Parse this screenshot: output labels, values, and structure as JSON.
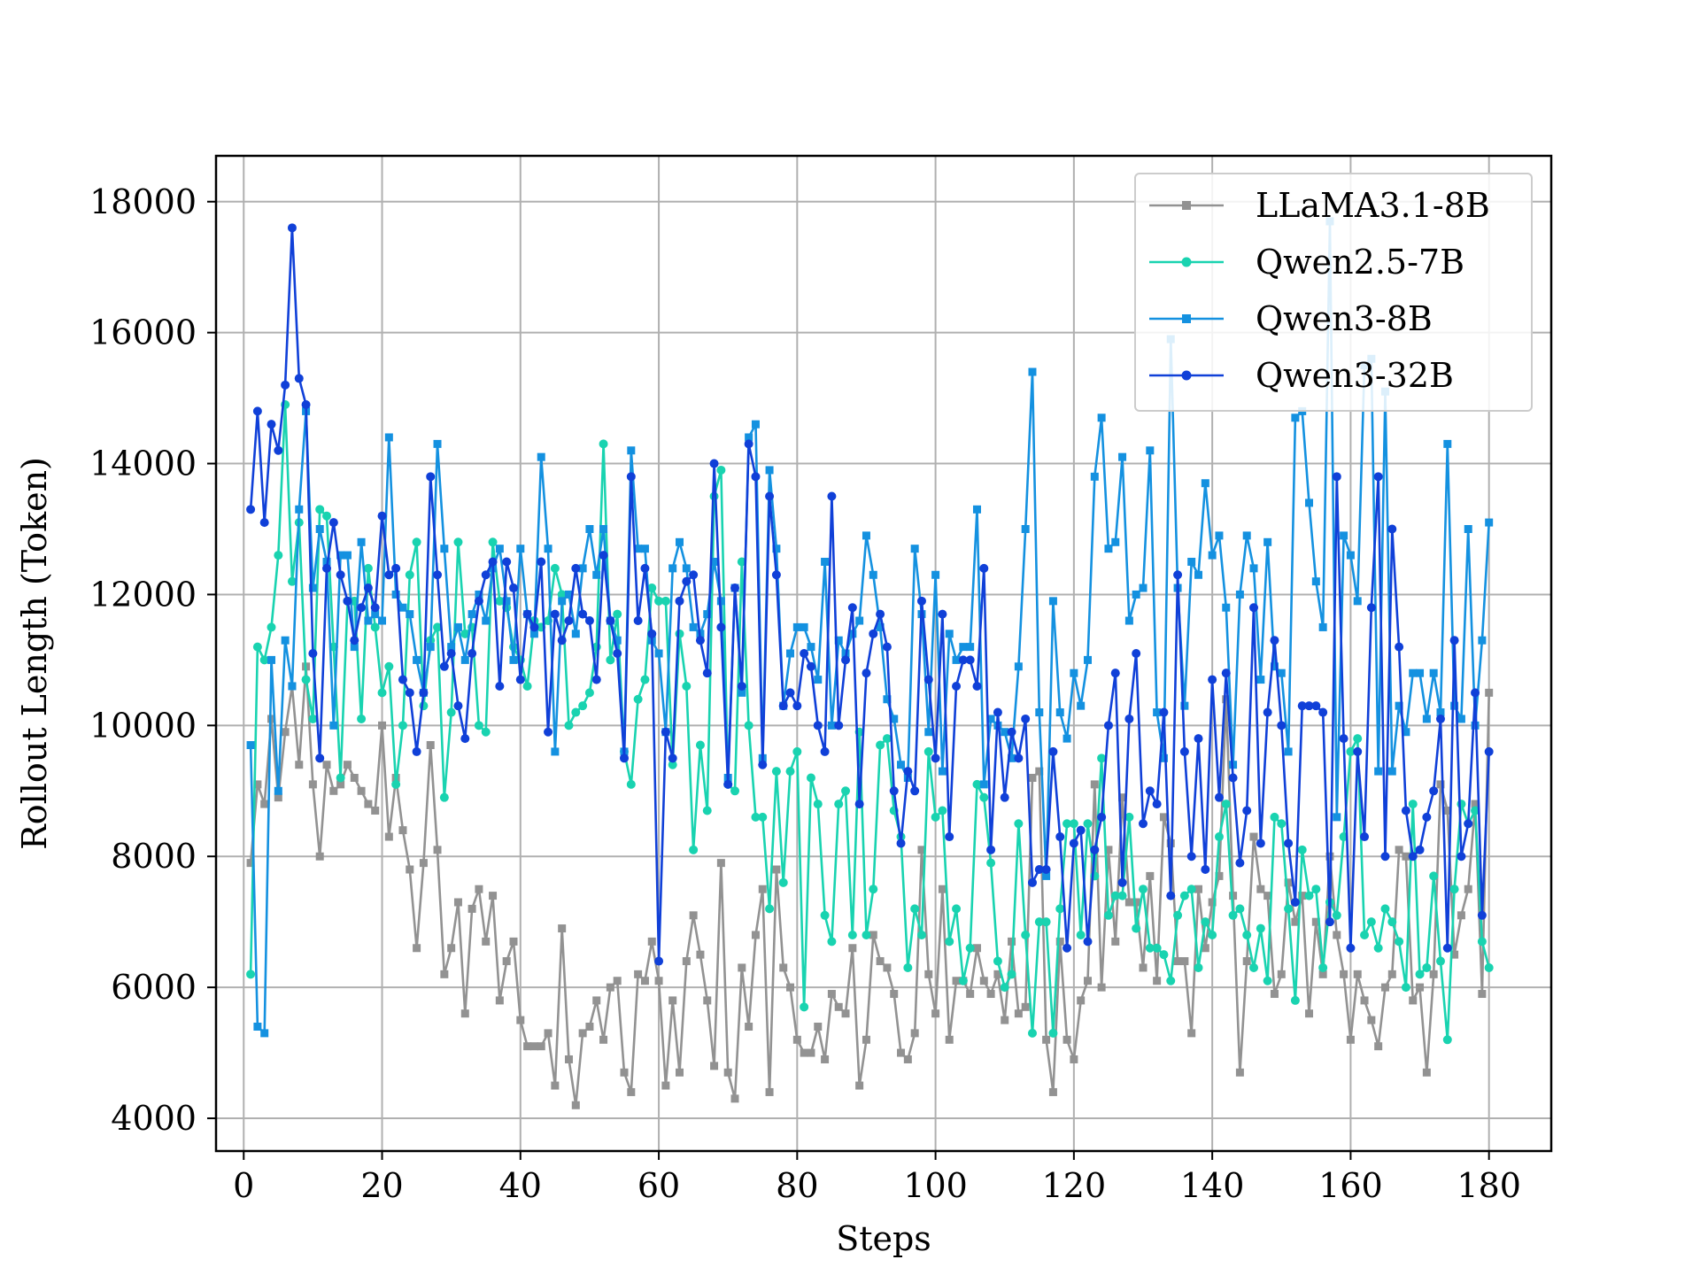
{
  "chart_data": {
    "type": "line",
    "title": "",
    "xlabel": "Steps",
    "ylabel": "Rollout Length (Token)",
    "xlim": [
      -4,
      189
    ],
    "ylim": [
      3500,
      18700
    ],
    "xticks": [
      0,
      20,
      40,
      60,
      80,
      100,
      120,
      140,
      160,
      180
    ],
    "yticks": [
      4000,
      6000,
      8000,
      10000,
      12000,
      14000,
      16000,
      18000
    ],
    "grid": true,
    "legend_position": "top-right",
    "x": [
      1,
      2,
      3,
      4,
      5,
      6,
      7,
      8,
      9,
      10,
      11,
      12,
      13,
      14,
      15,
      16,
      17,
      18,
      19,
      20,
      21,
      22,
      23,
      24,
      25,
      26,
      27,
      28,
      29,
      30,
      31,
      32,
      33,
      34,
      35,
      36,
      37,
      38,
      39,
      40,
      41,
      42,
      43,
      44,
      45,
      46,
      47,
      48,
      49,
      50,
      51,
      52,
      53,
      54,
      55,
      56,
      57,
      58,
      59,
      60,
      61,
      62,
      63,
      64,
      65,
      66,
      67,
      68,
      69,
      70,
      71,
      72,
      73,
      74,
      75,
      76,
      77,
      78,
      79,
      80,
      81,
      82,
      83,
      84,
      85,
      86,
      87,
      88,
      89,
      90,
      91,
      92,
      93,
      94,
      95,
      96,
      97,
      98,
      99,
      100,
      101,
      102,
      103,
      104,
      105,
      106,
      107,
      108,
      109,
      110,
      111,
      112,
      113,
      114,
      115,
      116,
      117,
      118,
      119,
      120,
      121,
      122,
      123,
      124,
      125,
      126,
      127,
      128,
      129,
      130,
      131,
      132,
      133,
      134,
      135,
      136,
      137,
      138,
      139,
      140,
      141,
      142,
      143,
      144,
      145,
      146,
      147,
      148,
      149,
      150,
      151,
      152,
      153,
      154,
      155,
      156,
      157,
      158,
      159,
      160,
      161,
      162,
      163,
      164,
      165,
      166,
      167,
      168,
      169,
      170,
      171,
      172,
      173,
      174,
      175,
      176,
      177,
      178,
      179,
      180
    ],
    "series": [
      {
        "name": "LLaMA3.1-8B",
        "color": "#929292",
        "marker": "square",
        "values": [
          7900,
          9100,
          8800,
          10100,
          8900,
          9900,
          10600,
          9400,
          10900,
          9100,
          8000,
          9400,
          9000,
          9100,
          9400,
          9200,
          9000,
          8800,
          8700,
          10000,
          8300,
          9200,
          8400,
          7800,
          6600,
          7900,
          9700,
          8100,
          6200,
          6600,
          7300,
          5600,
          7200,
          7500,
          6700,
          7400,
          5800,
          6400,
          6700,
          5500,
          5100,
          5100,
          5100,
          5300,
          4500,
          6900,
          4900,
          4200,
          5300,
          5400,
          5800,
          5200,
          6000,
          6100,
          4700,
          4400,
          6200,
          6100,
          6700,
          6100,
          4500,
          5800,
          4700,
          6400,
          7100,
          6500,
          5800,
          4800,
          7900,
          4700,
          4300,
          6300,
          5400,
          6800,
          7500,
          4400,
          7800,
          6300,
          6000,
          5200,
          5000,
          5000,
          5400,
          4900,
          5900,
          5700,
          5600,
          6600,
          4500,
          5200,
          6800,
          6400,
          6300,
          5900,
          5000,
          4900,
          5300,
          8100,
          6200,
          5600,
          7500,
          5200,
          6100,
          6100,
          5900,
          6600,
          6100,
          5900,
          6200,
          5500,
          6700,
          5600,
          5700,
          9200,
          9300,
          5200,
          4400,
          6700,
          5200,
          4900,
          5800,
          6100,
          9100,
          6000,
          8100,
          6700,
          8900,
          7300,
          7300,
          6300,
          7700,
          6100,
          8600,
          8200,
          6400,
          6400,
          5300,
          7500,
          6600,
          7300,
          7700,
          10400,
          7400,
          4700,
          6400,
          8300,
          7500,
          7400,
          5900,
          6200,
          7600,
          7000,
          7400,
          5600,
          7000,
          6200,
          8000,
          6800,
          6200,
          5200,
          6200,
          5800,
          5500,
          5100,
          6000,
          6200,
          8100,
          8000,
          5800,
          6000,
          4700,
          6200,
          9100,
          8700,
          6500,
          7100,
          7500,
          8800,
          5900,
          10500
        ]
      },
      {
        "name": "Qwen2.5-7B",
        "color": "#19d3b0",
        "marker": "circle",
        "values": [
          6200,
          11200,
          11000,
          11500,
          12600,
          14900,
          12200,
          13100,
          10700,
          10100,
          13300,
          13200,
          11200,
          9200,
          11900,
          11900,
          10100,
          12400,
          11500,
          10500,
          10900,
          9100,
          10000,
          12300,
          12800,
          10300,
          11300,
          11500,
          8900,
          10200,
          12800,
          11400,
          11500,
          10000,
          9900,
          12800,
          11900,
          11800,
          11200,
          11000,
          10600,
          11600,
          11500,
          11600,
          12400,
          12000,
          10000,
          10200,
          10300,
          10500,
          11200,
          14300,
          11000,
          11700,
          9600,
          9100,
          10400,
          10700,
          12100,
          11900,
          11900,
          9400,
          11400,
          10600,
          8100,
          9700,
          8700,
          13500,
          13900,
          9100,
          9000,
          12500,
          10000,
          8600,
          8600,
          7200,
          9300,
          7600,
          9300,
          9600,
          5700,
          9200,
          8800,
          7100,
          6700,
          8800,
          9000,
          6800,
          9900,
          6800,
          7500,
          9700,
          9800,
          8700,
          8300,
          6300,
          7200,
          6800,
          9600,
          8600,
          8700,
          6700,
          7200,
          6100,
          6600,
          9100,
          8900,
          7900,
          6400,
          6000,
          6200,
          8500,
          6800,
          5300,
          7000,
          7000,
          5300,
          7200,
          8500,
          8500,
          6800,
          8500,
          7700,
          9500,
          7100,
          7400,
          7400,
          8600,
          6900,
          7500,
          6600,
          6600,
          6500,
          6100,
          7100,
          7400,
          7500,
          6300,
          7000,
          6800,
          8300,
          8800,
          7100,
          7200,
          6800,
          6300,
          6900,
          6100,
          8600,
          8500,
          7200,
          5800,
          8100,
          7400,
          7500,
          6300,
          7300,
          7100,
          8300,
          9600,
          9800,
          6800,
          7000,
          6600,
          7200,
          7000,
          6700,
          6000,
          8800,
          6200,
          6300,
          7700,
          6400,
          5200,
          7500,
          8800,
          8500,
          8700,
          6700,
          6300
        ]
      },
      {
        "name": "Qwen3-8B",
        "color": "#1491e0",
        "marker": "square",
        "values": [
          9700,
          5400,
          5300,
          11000,
          9000,
          11300,
          10600,
          13300,
          14800,
          12100,
          13000,
          12500,
          10000,
          12600,
          12600,
          11200,
          12800,
          11600,
          11700,
          11600,
          14400,
          12000,
          11800,
          11700,
          11000,
          10500,
          11200,
          14300,
          12700,
          11200,
          11500,
          11000,
          11700,
          12000,
          11600,
          12400,
          12700,
          11900,
          11000,
          12700,
          11700,
          11400,
          14100,
          12700,
          9600,
          11900,
          12000,
          11400,
          12400,
          13000,
          12300,
          13000,
          11600,
          11300,
          9600,
          14200,
          12700,
          12700,
          11300,
          11100,
          9900,
          12400,
          12800,
          12400,
          11500,
          11400,
          11700,
          12500,
          11900,
          9200,
          12100,
          10500,
          14400,
          14600,
          9500,
          13900,
          12700,
          10300,
          11100,
          11500,
          11500,
          11200,
          10700,
          12500,
          10000,
          11300,
          11100,
          11400,
          11600,
          12900,
          12300,
          11500,
          10400,
          10100,
          9400,
          9200,
          12700,
          11700,
          9900,
          12300,
          9300,
          11400,
          11000,
          11200,
          11200,
          13300,
          9100,
          10100,
          10000,
          9900,
          9500,
          10900,
          13000,
          15400,
          10200,
          7700,
          11900,
          10200,
          9800,
          10800,
          10300,
          11000,
          13800,
          14700,
          12700,
          12800,
          14100,
          11600,
          12000,
          12100,
          14200,
          10200,
          9500,
          15900,
          12100,
          10300,
          12500,
          12300,
          13700,
          12600,
          12900,
          11800,
          9400,
          12000,
          12900,
          12400,
          10700,
          12800,
          10900,
          10800,
          9600,
          14700,
          14800,
          13400,
          12200,
          11500,
          17700,
          8600,
          12900,
          12600,
          11900,
          15500,
          15600,
          9300,
          15100,
          9300,
          10300,
          9900,
          10800,
          10800,
          10100,
          10800,
          10200,
          14300,
          10300,
          10100,
          13000,
          10000,
          11300,
          13100
        ]
      },
      {
        "name": "Qwen3-32B",
        "color": "#1040d8",
        "marker": "circle",
        "values": [
          13300,
          14800,
          13100,
          14600,
          14200,
          15200,
          17600,
          15300,
          14900,
          11100,
          9500,
          12400,
          13100,
          12300,
          11900,
          11300,
          11800,
          12100,
          11800,
          13200,
          12300,
          12400,
          10700,
          10500,
          9600,
          10500,
          13800,
          12300,
          10900,
          11100,
          10300,
          9800,
          11100,
          11900,
          12300,
          12500,
          10600,
          12500,
          12100,
          10700,
          11700,
          11500,
          12500,
          9900,
          11700,
          11300,
          11600,
          12400,
          11700,
          11600,
          10700,
          12600,
          11600,
          11100,
          9500,
          13800,
          11600,
          12400,
          11400,
          6400,
          9900,
          9500,
          11900,
          12200,
          12300,
          11300,
          10800,
          14000,
          11500,
          9100,
          12100,
          10600,
          14300,
          13800,
          9400,
          13500,
          12300,
          10300,
          10500,
          10300,
          11100,
          10900,
          10000,
          9600,
          13500,
          10000,
          11000,
          11800,
          8800,
          10800,
          11400,
          11700,
          11200,
          9000,
          8200,
          9300,
          9000,
          11900,
          10700,
          9500,
          11700,
          8300,
          10600,
          11000,
          11000,
          10600,
          12400,
          8100,
          10200,
          8900,
          9900,
          9500,
          10100,
          7600,
          7800,
          7800,
          9600,
          8300,
          6600,
          8200,
          8400,
          6700,
          8100,
          8600,
          10000,
          10800,
          7600,
          10100,
          11100,
          8500,
          9000,
          8800,
          10200,
          7400,
          12300,
          9600,
          8000,
          9800,
          7800,
          10700,
          8900,
          10800,
          9200,
          7900,
          8700,
          11800,
          8200,
          10200,
          11300,
          10000,
          8200,
          7300,
          10300,
          10300,
          10300,
          10200,
          7000,
          13800,
          9800,
          6600,
          9600,
          8300,
          11800,
          13800,
          8000,
          13000,
          11200,
          8700,
          8000,
          8100,
          8600,
          9000,
          10100,
          6600,
          11300,
          8000,
          8500,
          10500,
          7100,
          9600
        ]
      }
    ]
  }
}
